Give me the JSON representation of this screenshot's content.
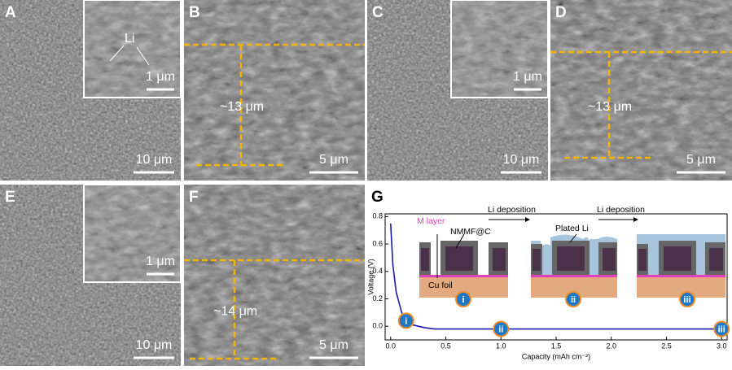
{
  "panels": [
    {
      "label": "A",
      "scale_bar": "10 μm",
      "inset_scale_bar": "1 μm",
      "annotation": "Li"
    },
    {
      "label": "B",
      "scale_bar": "5 μm",
      "thickness": "~13 μm"
    },
    {
      "label": "C",
      "scale_bar": "10 μm",
      "inset_scale_bar": "1 μm"
    },
    {
      "label": "D",
      "scale_bar": "5 μm",
      "thickness": "~13 μm"
    },
    {
      "label": "E",
      "scale_bar": "10 μm",
      "inset_scale_bar": "1 μm"
    },
    {
      "label": "F",
      "scale_bar": "5 μm",
      "thickness": "~14 μm"
    }
  ],
  "chart_data": {
    "type": "line",
    "label": "G",
    "x_label": "Capacity (mAh cm⁻²)",
    "y_label": "Voltage (V)",
    "x": [
      0,
      0.02,
      0.05,
      0.1,
      0.15,
      0.2,
      0.3,
      0.4,
      0.6,
      1.0,
      2.0,
      3.0
    ],
    "series": [
      {
        "color": "#1a1aa6",
        "values": [
          0.75,
          0.45,
          0.25,
          0.1,
          0.04,
          0.01,
          -0.01,
          -0.02,
          -0.02,
          -0.02,
          -0.02,
          -0.02
        ]
      }
    ],
    "xlim": [
      -0.05,
      3.05
    ],
    "ylim": [
      -0.1,
      0.82
    ],
    "xticks": [
      {
        "value": 0,
        "label": "0.0"
      },
      0.5,
      {
        "value": 1,
        "label": "1.0"
      },
      1.5,
      {
        "value": 2,
        "label": "2.0"
      },
      2.5,
      {
        "value": 3,
        "label": "3.0"
      }
    ],
    "yticks": [
      {
        "value": 0,
        "label": "0.0"
      },
      0.2,
      0.4,
      0.6,
      0.8
    ],
    "markers": [
      {
        "x": 0.14,
        "y": 0.04,
        "label": "i"
      },
      {
        "x": 1.0,
        "y": -0.02,
        "label": "ii"
      },
      {
        "x": 3.0,
        "y": -0.02,
        "label": "iii"
      }
    ],
    "schematic": {
      "m_layer": "M layer",
      "host": "NMMF@C",
      "foil": "Cu foil",
      "plated": "Plated Li",
      "arrow_1": "Li deposition",
      "arrow_2": "Li deposition"
    }
  }
}
